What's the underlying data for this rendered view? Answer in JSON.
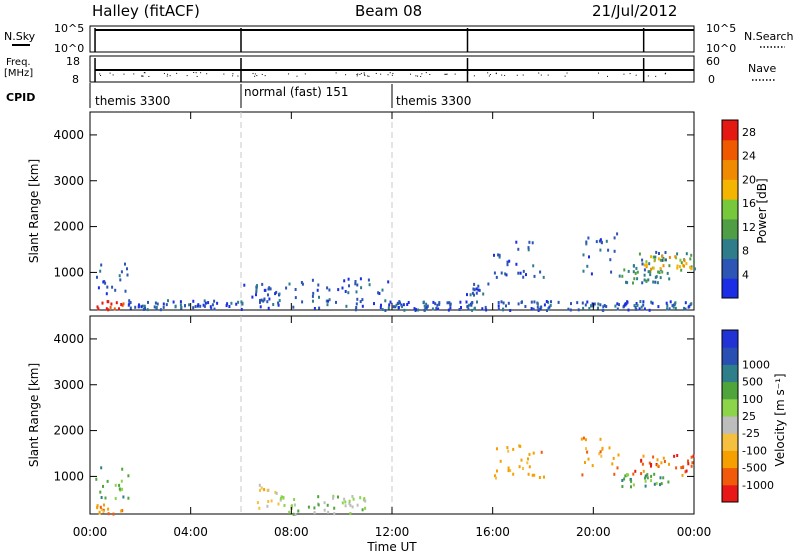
{
  "header": {
    "station": "Halley (fitACF)",
    "beam": "Beam 08",
    "date": "21/Jul/2012"
  },
  "strip_labels": {
    "nsky": "N.Sky",
    "nsearch": "N.Search",
    "freq": "Freq.",
    "freq_unit": "[MHz]",
    "nave": "Nave",
    "cpid": "CPID"
  },
  "colors": {
    "power": [
      "#1b2ee6",
      "#2c55b5",
      "#2f7d8a",
      "#4f9e46",
      "#78c83c",
      "#f5b400",
      "#f08a00",
      "#ef5a00",
      "#e41a12"
    ],
    "velocity": [
      "#e81818",
      "#f05a0a",
      "#f5a000",
      "#f5c040",
      "#bdbdbd",
      "#8cd44a",
      "#4fa43c",
      "#2f7f8a",
      "#2a4fb3",
      "#2233d6"
    ],
    "dashed_line": "#c8c8c8"
  },
  "chart_data": [
    {
      "type": "line",
      "title": "N.Sky / N.Search",
      "y_left_ticks": [
        "10^5",
        "10^0"
      ],
      "y_right_ticks": [
        "10^5",
        "10^0"
      ],
      "x_range_hours": [
        0,
        24
      ],
      "scan_breaks_hours": [
        0.2,
        6,
        15,
        22
      ],
      "note_series": [
        "N.Sky",
        "N.Search"
      ]
    },
    {
      "type": "line",
      "title": "Freq. / Nave",
      "y_left_ticks": [
        "18",
        "8"
      ],
      "y_right_ticks": [
        "60",
        "0"
      ],
      "x_range_hours": [
        0,
        24
      ],
      "scan_breaks_hours": [
        0.2,
        6,
        15,
        22
      ],
      "freq_mhz_approx": 12,
      "nave_approx": 20
    },
    {
      "type": "table",
      "title": "CPID",
      "segments": [
        {
          "start_hour": 0.2,
          "end_hour": 6,
          "label": "themis 3300"
        },
        {
          "start_hour": 6,
          "end_hour": 12,
          "label": "normal (fast) 151"
        },
        {
          "start_hour": 12,
          "end_hour": 24,
          "label": "themis 3300"
        }
      ]
    },
    {
      "type": "heatmap",
      "title": "Power",
      "ylabel": "Slant Range [km]",
      "ylim": [
        180,
        4500
      ],
      "y_ticks": [
        1000,
        2000,
        3000,
        4000
      ],
      "x_range_hours": [
        0,
        24
      ],
      "colorbar_label": "Power [dB]",
      "colorbar_ticks": [
        "4",
        "8",
        "12",
        "16",
        "20",
        "24",
        "28"
      ],
      "colorbar_range": [
        0,
        30
      ],
      "patches": [
        {
          "t0": 0.2,
          "t1": 1.3,
          "r0": 200,
          "r1": 420,
          "level": 8
        },
        {
          "t0": 0.2,
          "t1": 1.5,
          "r0": 550,
          "r1": 1250,
          "level": 1
        },
        {
          "t0": 1.5,
          "t1": 6.0,
          "r0": 220,
          "r1": 420,
          "level": 1
        },
        {
          "t0": 6.0,
          "t1": 12.0,
          "r0": 200,
          "r1": 900,
          "level": 1
        },
        {
          "t0": 6.7,
          "t1": 7.5,
          "r0": 300,
          "r1": 850,
          "level": 1
        },
        {
          "t0": 12.0,
          "t1": 24.0,
          "r0": 200,
          "r1": 400,
          "level": 1
        },
        {
          "t0": 14.8,
          "t1": 15.8,
          "r0": 500,
          "r1": 800,
          "level": 1
        },
        {
          "t0": 16.0,
          "t1": 18.0,
          "r0": 900,
          "r1": 1700,
          "level": 1
        },
        {
          "t0": 19.5,
          "t1": 21.0,
          "r0": 1000,
          "r1": 1900,
          "level": 1
        },
        {
          "t0": 21.5,
          "t1": 24.0,
          "r0": 1000,
          "r1": 1500,
          "level": 2
        },
        {
          "t0": 22.0,
          "t1": 24.0,
          "r0": 1100,
          "r1": 1400,
          "level": 5
        },
        {
          "t0": 21.0,
          "t1": 23.0,
          "r0": 800,
          "r1": 1100,
          "level": 2
        }
      ]
    },
    {
      "type": "heatmap",
      "title": "Velocity",
      "ylabel": "Slant Range [km]",
      "ylim": [
        180,
        4500
      ],
      "y_ticks": [
        1000,
        2000,
        3000,
        4000
      ],
      "x_range_hours": [
        0,
        24
      ],
      "xlabel": "Time UT",
      "x_ticks": [
        "00:00",
        "04:00",
        "08:00",
        "12:00",
        "16:00",
        "20:00",
        "00:00"
      ],
      "colorbar_label": "Velocity [m s⁻¹]",
      "colorbar_ticks": [
        "-1000",
        "-500",
        "-100",
        "-25",
        "25",
        "100",
        "500",
        "1000"
      ],
      "patches": [
        {
          "t0": 0.2,
          "t1": 1.3,
          "r0": 200,
          "r1": 420,
          "level": 2
        },
        {
          "t0": 0.2,
          "t1": 1.5,
          "r0": 550,
          "r1": 1250,
          "level": 6
        },
        {
          "t0": 6.5,
          "t1": 7.5,
          "r0": 300,
          "r1": 850,
          "level": 3
        },
        {
          "t0": 7.5,
          "t1": 11.0,
          "r0": 200,
          "r1": 600,
          "level": 5
        },
        {
          "t0": 16.0,
          "t1": 18.0,
          "r0": 900,
          "r1": 1700,
          "level": 2
        },
        {
          "t0": 19.5,
          "t1": 21.0,
          "r0": 1000,
          "r1": 1900,
          "level": 2
        },
        {
          "t0": 21.5,
          "t1": 24.0,
          "r0": 1000,
          "r1": 1500,
          "level": 1
        },
        {
          "t0": 21.0,
          "t1": 23.0,
          "r0": 800,
          "r1": 1100,
          "level": 6
        }
      ]
    }
  ]
}
